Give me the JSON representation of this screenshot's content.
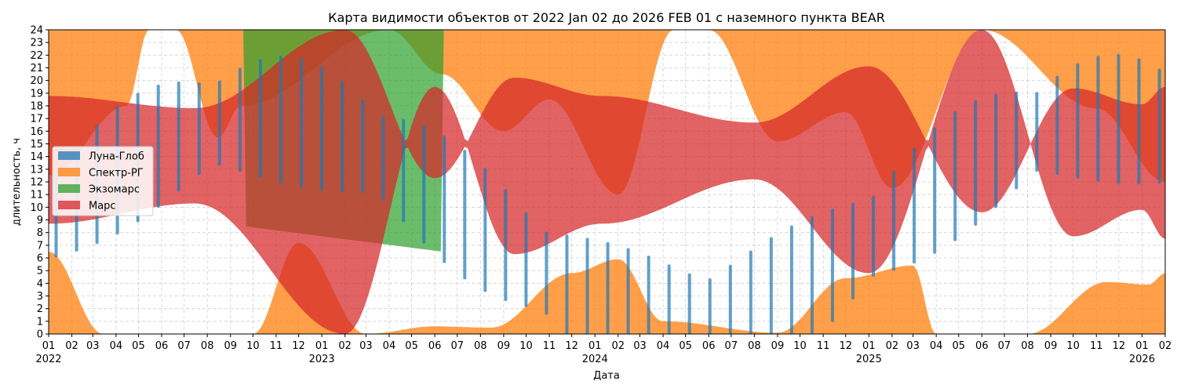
{
  "chart_data": {
    "type": "area",
    "title": "Карта видимости объектов от 2022 Jan 02 до 2026 FEB 01 с наземного пункта BEAR",
    "xlabel": "Дата",
    "ylabel": "длительность, ч",
    "xlim": [
      "2022-01-01",
      "2026-02-01"
    ],
    "ylim": [
      0,
      24
    ],
    "grid": true,
    "legend_position": "center-left",
    "x_month_ticks": [
      "01",
      "02",
      "03",
      "04",
      "05",
      "06",
      "07",
      "08",
      "09",
      "10",
      "11",
      "12",
      "01",
      "02",
      "03",
      "04",
      "05",
      "06",
      "07",
      "08",
      "09",
      "10",
      "11",
      "12",
      "01",
      "02",
      "03",
      "04",
      "05",
      "06",
      "07",
      "08",
      "09",
      "10",
      "11",
      "12",
      "01",
      "02",
      "03",
      "04",
      "05",
      "06",
      "07",
      "08",
      "09",
      "10",
      "11",
      "12",
      "01",
      "02"
    ],
    "x_year_ticks": [
      "2022",
      "2023",
      "2024",
      "2025",
      "2026"
    ],
    "y_ticks": [
      "0",
      "1",
      "2",
      "3",
      "4",
      "5",
      "6",
      "7",
      "8",
      "9",
      "10",
      "11",
      "12",
      "13",
      "14",
      "15",
      "16",
      "17",
      "18",
      "19",
      "20",
      "21",
      "22",
      "23",
      "24"
    ],
    "series": [
      {
        "name": "Луна-Глоб",
        "color": "#1f77b4",
        "note_period_days": 27.3
      },
      {
        "name": "Спектр-РГ",
        "color": "#ff7f0e",
        "upper_lower_bound_points": [
          [
            "2022-01-01",
            12.5
          ],
          [
            "2022-04-15",
            18
          ],
          [
            "2022-05-15",
            24
          ],
          [
            "2022-06-20",
            24
          ],
          [
            "2022-08-15",
            15.5
          ],
          [
            "2022-09-15",
            18
          ],
          [
            "2023-04-01",
            24
          ],
          [
            "2023-06-10",
            20.5
          ],
          [
            "2023-09-01",
            16
          ],
          [
            "2023-11-01",
            18.5
          ],
          [
            "2024-02-01",
            11
          ],
          [
            "2024-04-15",
            24
          ],
          [
            "2024-06-01",
            24
          ],
          [
            "2024-09-01",
            15.2
          ],
          [
            "2024-12-01",
            17.5
          ],
          [
            "2025-02-01",
            11.5
          ],
          [
            "2025-06-01",
            24
          ],
          [
            "2025-11-01",
            17.8
          ],
          [
            "2026-02-01",
            12
          ]
        ],
        "lower_upper_bound_points": [
          [
            "2022-01-01",
            6.5
          ],
          [
            "2022-03-15",
            0
          ],
          [
            "2022-10-01",
            0
          ],
          [
            "2022-12-01",
            7.2
          ],
          [
            "2023-03-01",
            0
          ],
          [
            "2023-06-01",
            0.6
          ],
          [
            "2023-08-15",
            0.5
          ],
          [
            "2023-12-01",
            4.8
          ],
          [
            "2024-02-01",
            5.9
          ],
          [
            "2024-04-01",
            1
          ],
          [
            "2024-09-01",
            0.1
          ],
          [
            "2024-12-01",
            4.4
          ],
          [
            "2025-03-01",
            5.4
          ],
          [
            "2025-04-01",
            0
          ],
          [
            "2025-08-01",
            0
          ],
          [
            "2025-11-15",
            4.1
          ],
          [
            "2026-01-10",
            3.9
          ],
          [
            "2026-02-01",
            4.8
          ]
        ]
      },
      {
        "name": "Экзомарс",
        "color": "#2ca02c",
        "start": "2022-09-20",
        "end": "2023-06-10"
      },
      {
        "name": "Марс",
        "color": "#d62728",
        "band_points": [
          [
            "2022-01-01",
            8.7
          ],
          [
            "2022-07-15",
            10.3
          ],
          [
            "2023-02-01",
            0
          ],
          [
            "2023-06-01",
            19.5
          ],
          [
            "2023-09-15",
            6.3
          ],
          [
            "2024-01-10",
            8.7
          ],
          [
            "2024-08-01",
            12.2
          ],
          [
            "2025-01-01",
            4.8
          ],
          [
            "2025-06-01",
            24
          ],
          [
            "2025-10-01",
            7.7
          ],
          [
            "2026-01-01",
            9.8
          ],
          [
            "2026-02-01",
            7.5
          ]
        ]
      }
    ]
  }
}
